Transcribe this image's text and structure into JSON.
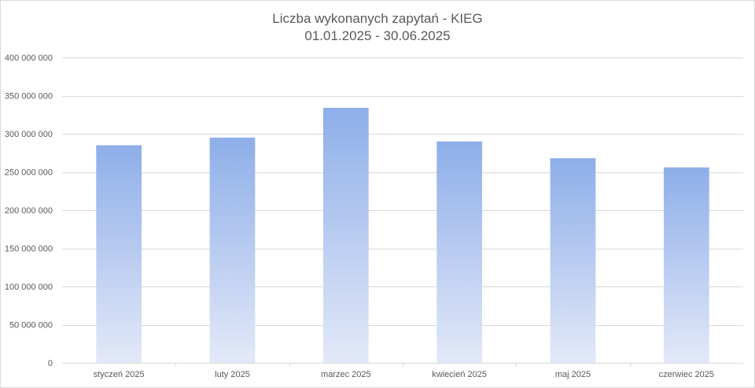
{
  "chart_data": {
    "type": "bar",
    "title": "Liczba wykonanych zapytań - KIEG",
    "subtitle": "01.01.2025 - 30.06.2025",
    "categories": [
      "styczeń 2025",
      "luty 2025",
      "marzec 2025",
      "kwiecień 2025",
      "maj 2025",
      "czerwiec 2025"
    ],
    "values": [
      285000000,
      295000000,
      334000000,
      290000000,
      268000000,
      256000000
    ],
    "ylim": [
      0,
      400000000
    ],
    "yticks": [
      0,
      50000000,
      100000000,
      150000000,
      200000000,
      250000000,
      300000000,
      350000000,
      400000000
    ],
    "ytick_labels": [
      "0",
      "50 000 000",
      "100 000 000",
      "150 000 000",
      "200 000 000",
      "250 000 000",
      "300 000 000",
      "350 000 000",
      "400 000 000"
    ],
    "grid": true,
    "legend": "none",
    "colors": {
      "bar_top": "#8eaee9",
      "bar_bottom": "#e3e9f8",
      "grid": "#d9d9d9",
      "text": "#595959"
    }
  }
}
